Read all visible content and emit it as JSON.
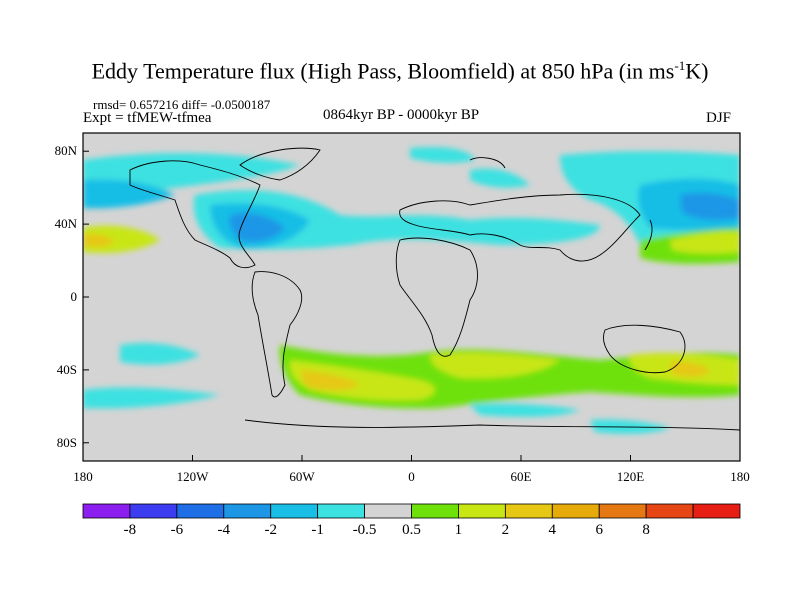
{
  "title": {
    "text": "Eddy Temperature flux (High Pass, Bloomfield) at 850 hPa (in ms",
    "sup": "-1",
    "suffix": "K)"
  },
  "stats": "rmsd= 0.657216 diff= -0.0500187",
  "experiment": "Expt = tfMEW-tfmea",
  "period": "0864kyr BP - 0000kyr BP",
  "season": "DJF",
  "map": {
    "lon_range": [
      -180,
      180
    ],
    "lat_range": [
      -90,
      90
    ],
    "land_color": "#d4d4d4",
    "x_ticks": [
      {
        "lon": -180,
        "label": "180"
      },
      {
        "lon": -120,
        "label": "120W"
      },
      {
        "lon": -60,
        "label": "60W"
      },
      {
        "lon": 0,
        "label": "0"
      },
      {
        "lon": 60,
        "label": "60E"
      },
      {
        "lon": 120,
        "label": "120E"
      },
      {
        "lon": 180,
        "label": "180"
      }
    ],
    "y_ticks": [
      {
        "lat": 80,
        "label": "80N"
      },
      {
        "lat": 40,
        "label": "40N"
      },
      {
        "lat": 0,
        "label": "0"
      },
      {
        "lat": -40,
        "label": "40S"
      },
      {
        "lat": -80,
        "label": "80S"
      }
    ]
  },
  "colorbar": {
    "colors": [
      "#8c1ef0",
      "#3c3cf0",
      "#1e6ee6",
      "#1e96e6",
      "#18bee6",
      "#3ce1e1",
      "#d4d4d4",
      "#6ee10a",
      "#c8e614",
      "#e6c814",
      "#e6aa0a",
      "#e67814",
      "#e64614",
      "#e61e14"
    ],
    "labels": [
      "-8",
      "-6",
      "-4",
      "-2",
      "-1",
      "-0.5",
      "0.5",
      "1",
      "2",
      "4",
      "6",
      "8"
    ]
  },
  "chart_data": {
    "type": "heatmap",
    "title": "Eddy Temperature flux (High Pass, Bloomfield) at 850 hPa (in ms-1K)",
    "xlim": [
      -180,
      180
    ],
    "ylim": [
      -90,
      90
    ],
    "regions": [
      {
        "lon": -120,
        "lat": 75,
        "value": -1
      },
      {
        "lon": -60,
        "lat": 40,
        "value": -2
      },
      {
        "lon": -70,
        "lat": 38,
        "value": -4
      },
      {
        "lon": 30,
        "lat": 35,
        "value": -1
      },
      {
        "lon": 70,
        "lat": 50,
        "value": -1
      },
      {
        "lon": 140,
        "lat": 50,
        "value": -2
      },
      {
        "lon": -170,
        "lat": 32,
        "value": 2
      },
      {
        "lon": 160,
        "lat": 33,
        "value": 2
      },
      {
        "lon": -30,
        "lat": -45,
        "value": 2
      },
      {
        "lon": -50,
        "lat": -45,
        "value": 4
      },
      {
        "lon": 40,
        "lat": -40,
        "value": 1
      },
      {
        "lon": 100,
        "lat": -48,
        "value": 1
      },
      {
        "lon": 150,
        "lat": -40,
        "value": 2
      },
      {
        "lon": -140,
        "lat": -32,
        "value": -0.5
      }
    ]
  }
}
